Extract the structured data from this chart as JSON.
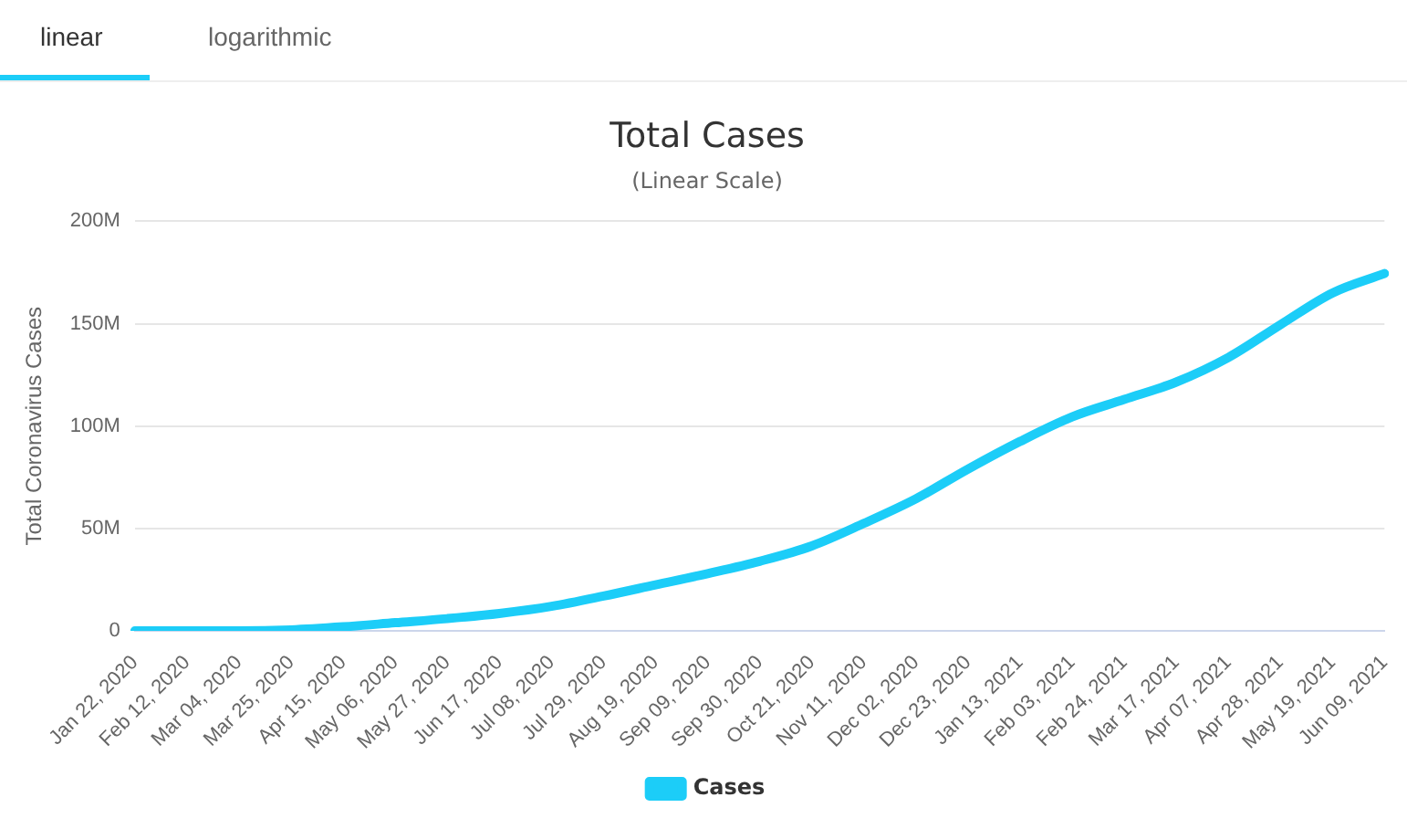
{
  "chart_data": {
    "type": "line",
    "title": "Total Cases",
    "subtitle": "(Linear Scale)",
    "ylabel": "Total Coronavirus Cases",
    "annotations": [
      "linear",
      "logarithmic"
    ],
    "categories": [
      "Jan 22, 2020",
      "Feb 12, 2020",
      "Mar 04, 2020",
      "Mar 25, 2020",
      "Apr 15, 2020",
      "May 06, 2020",
      "May 27, 2020",
      "Jun 17, 2020",
      "Jul 08, 2020",
      "Jul 29, 2020",
      "Aug 19, 2020",
      "Sep 09, 2020",
      "Sep 30, 2020",
      "Oct 21, 2020",
      "Nov 11, 2020",
      "Dec 02, 2020",
      "Dec 23, 2020",
      "Jan 13, 2021",
      "Feb 03, 2021",
      "Feb 24, 2021",
      "Mar 17, 2021",
      "Apr 07, 2021",
      "Apr 28, 2021",
      "May 19, 2021",
      "Jun 09, 2021"
    ],
    "series": [
      {
        "name": "Cases",
        "color": "#1ccdf8",
        "values": [
          0,
          0,
          0,
          500000,
          2000000,
          4000000,
          6000000,
          8500000,
          12000000,
          17000000,
          22500000,
          28000000,
          34000000,
          41500000,
          52500000,
          64500000,
          79000000,
          92500000,
          104500000,
          113000000,
          121500000,
          133500000,
          149500000,
          165000000,
          174500000
        ]
      }
    ],
    "ylim": [
      0,
      200000000
    ],
    "yticks": [
      {
        "value": 0,
        "label": "0"
      },
      {
        "value": 50000000,
        "label": "50M"
      },
      {
        "value": 100000000,
        "label": "100M"
      },
      {
        "value": 150000000,
        "label": "150M"
      },
      {
        "value": 200000000,
        "label": "200M"
      }
    ],
    "grid": "y",
    "legend": "bottom",
    "marker": "none",
    "line_style": "solid"
  }
}
